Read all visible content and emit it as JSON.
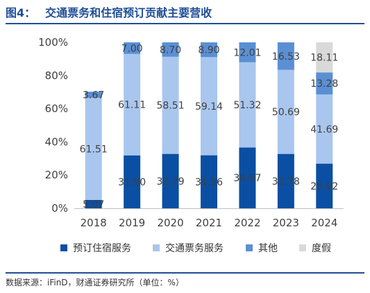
{
  "header": {
    "figure_no": "图4：",
    "title": "交通票务和住宿预订贡献主要营收"
  },
  "source": "数据来源：iFinD，财通证券研究所（单位：%）",
  "chart_data": {
    "type": "bar",
    "stacked": true,
    "categories": [
      "2018",
      "2019",
      "2020",
      "2021",
      "2022",
      "2023",
      "2024"
    ],
    "series": [
      {
        "name": "预订住宿服务",
        "color": "#0a4fa3",
        "values": [
          5.07,
          31.9,
          32.79,
          31.96,
          36.67,
          32.78,
          26.92
        ]
      },
      {
        "name": "交通票务服务",
        "color": "#a9c6ee",
        "values": [
          61.51,
          61.11,
          58.51,
          59.14,
          51.32,
          50.69,
          41.69
        ]
      },
      {
        "name": "其他",
        "color": "#5b8fd4",
        "values": [
          3.67,
          7.0,
          8.7,
          8.9,
          12.01,
          16.53,
          13.28
        ]
      },
      {
        "name": "度假",
        "color": "#d9d9d9",
        "values": [
          null,
          null,
          null,
          null,
          null,
          null,
          18.11
        ]
      }
    ],
    "yticks": [
      "0%",
      "20%",
      "40%",
      "60%",
      "80%",
      "100%"
    ],
    "ylim": [
      0,
      100
    ],
    "xlabel": "",
    "ylabel": "",
    "legend_position": "bottom",
    "grid": false
  }
}
